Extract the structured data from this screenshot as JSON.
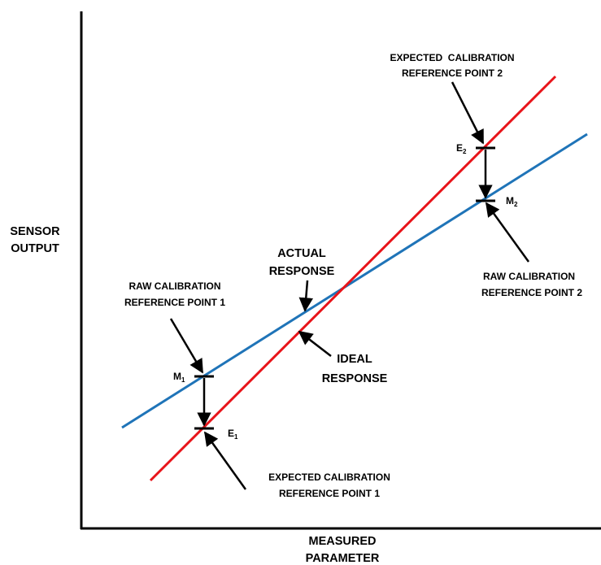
{
  "colors": {
    "ideal_line": "#e8141a",
    "actual_line": "#1f74b8",
    "axes": "#000000"
  },
  "axis": {
    "y_label_line1": "SENSOR",
    "y_label_line2": "OUTPUT",
    "x_label_line1": "MEASURED",
    "x_label_line2": "PARAMETER"
  },
  "labels": {
    "expected_ref_2_line1": "EXPECTED  CALIBRATION",
    "expected_ref_2_line2": "REFERENCE POINT 2",
    "raw_ref_2_line1": "RAW CALIBRATION",
    "raw_ref_2_line2": "REFERENCE POINT 2",
    "actual_response_line1": "ACTUAL",
    "actual_response_line2": "RESPONSE",
    "raw_ref_1_line1": "RAW CALIBRATION",
    "raw_ref_1_line2": "REFERENCE POINT 1",
    "ideal_response_line1": "IDEAL",
    "ideal_response_line2": "RESPONSE",
    "expected_ref_1_line1": "EXPECTED CALIBRATION",
    "expected_ref_1_line2": "REFERENCE POINT 1"
  },
  "points": {
    "m1": {
      "letter": "M",
      "sub": "1"
    },
    "e1": {
      "letter": "E",
      "sub": "1"
    },
    "m2": {
      "letter": "M",
      "sub": "2"
    },
    "e2": {
      "letter": "E",
      "sub": "2"
    }
  }
}
